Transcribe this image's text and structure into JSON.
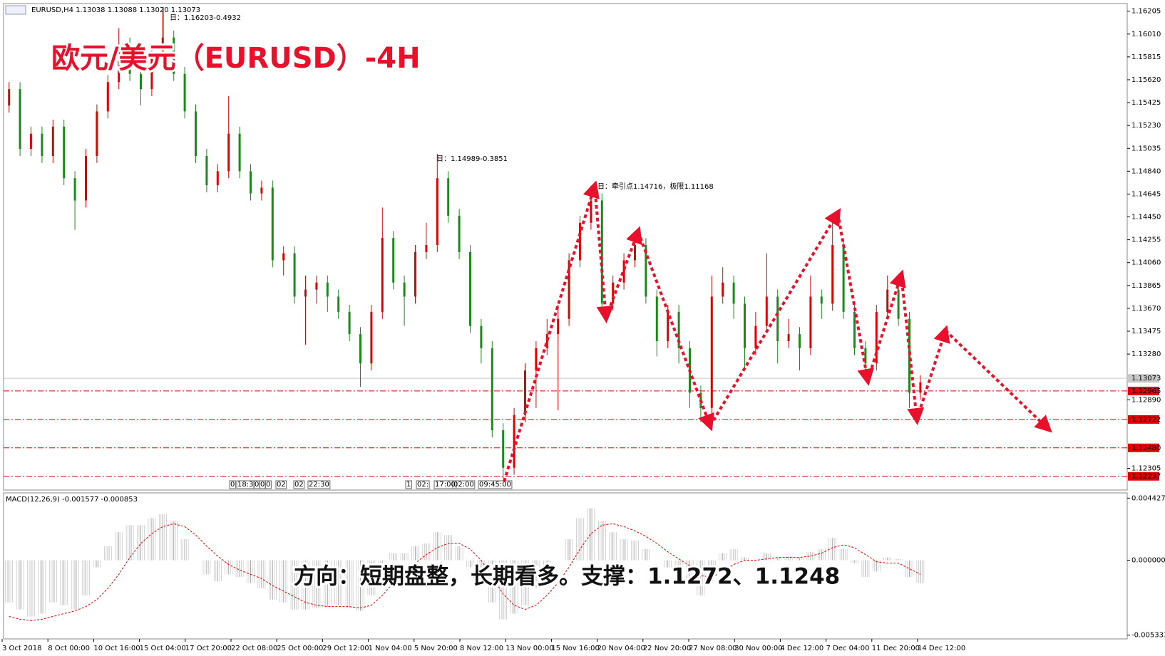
{
  "chart_data": [
    {
      "type": "candlestick",
      "header": "EURUSD,H4  1.13038 1.13088 1.13020 1.13073",
      "title": "欧元/美元（EURUSD）-4H",
      "annotations": [
        "日：1.16203-0.4932",
        "日：1.14989-0.3851",
        "日：牵引点1.14716，极限1.11168"
      ],
      "time_tags": [
        "0",
        "18:3",
        "0",
        "0",
        "0",
        "02",
        "02",
        "22:30",
        "1",
        "02:",
        "17:00",
        "02:00",
        "09:45:00"
      ],
      "up_color": "#e00000",
      "down_color": "#1a8a1a",
      "ylim": [
        1.1212,
        1.1627
      ],
      "yticks": [
        1.16205,
        {
          "value": 1.1601,
          "label": "1.16010"
        },
        1.15815,
        {
          "value": 1.1562,
          "label": "1.15620"
        },
        1.15425,
        {
          "value": 1.1523,
          "label": "1.15230"
        },
        1.15035,
        {
          "value": 1.1484,
          "label": "1.14840"
        },
        1.14645,
        {
          "value": 1.1445,
          "label": "1.14450"
        },
        1.14255,
        {
          "value": 1.1406,
          "label": "1.14060"
        },
        1.13865,
        {
          "value": 1.1367,
          "label": "1.13670"
        },
        1.13475,
        {
          "value": 1.1328,
          "label": "1.13280"
        },
        {
          "value": 1.1289,
          "label": "1.12890"
        },
        1.12305
      ],
      "levels": [
        1.12965,
        1.12722,
        {
          "value": 1.1248,
          "label": "1.12480"
        },
        1.12237
      ],
      "level_color": "#e00000",
      "current_price": 1.13073,
      "xtick_labels": [
        "3 Oct 2018",
        "8 Oct 00:00",
        "10 Oct 16:00",
        "15 Oct 04:00",
        "17 Oct 20:00",
        "22 Oct 08:00",
        "25 Oct 00:00",
        "29 Oct 12:00",
        "1 Nov 04:00",
        "5 Nov 20:00",
        "8 Nov 12:00",
        "13 Nov 00:00",
        "15 Nov 16:00",
        "20 Nov 04:00",
        "22 Nov 20:00",
        "27 Nov 08:00",
        "30 Nov 00:00",
        "4 Dec 12:00",
        "7 Dec 04:00",
        "11 Dec 20:00",
        "14 Dec 12:00"
      ],
      "open": [
        1.154,
        1.1554,
        1.1503,
        1.1516,
        1.1497,
        1.1522,
        1.1478,
        1.1459,
        1.1497,
        1.1535,
        1.156,
        1.1592,
        1.1567,
        1.1554,
        1.1586,
        1.1598,
        1.1567,
        1.1535,
        1.1497,
        1.1472,
        1.1484,
        1.1516,
        1.1484,
        1.1465,
        1.147,
        1.1408,
        1.1414,
        1.1377,
        1.1383,
        1.1389,
        1.1377,
        1.1364,
        1.1345,
        1.132,
        1.1364,
        1.1427,
        1.1389,
        1.1377,
        1.1415,
        1.1421,
        1.1478,
        1.1446,
        1.1415,
        1.1352,
        1.1333,
        1.1263,
        1.1231,
        1.1276,
        1.1314,
        1.1333,
        1.1345,
        1.1358,
        1.1408,
        1.144,
        1.1459,
        1.1371,
        1.1389,
        1.1408,
        1.1421,
        1.1377,
        1.1339,
        1.1364,
        1.1333,
        1.1295,
        1.1282,
        1.1377,
        1.1389,
        1.1371,
        1.1333,
        1.1352,
        1.1377,
        1.1339,
        1.1345,
        1.1333,
        1.1377,
        1.1371,
        1.1421,
        1.1364,
        1.1333,
        1.132,
        1.1364,
        1.1383,
        1.1358,
        1.1295
      ],
      "high": [
        1.156,
        1.156,
        1.1522,
        1.1522,
        1.1528,
        1.1528,
        1.1484,
        1.1503,
        1.1541,
        1.1566,
        1.1606,
        1.1598,
        1.1573,
        1.1592,
        1.16203,
        1.1604,
        1.1573,
        1.1541,
        1.1503,
        1.149,
        1.1548,
        1.1522,
        1.149,
        1.1476,
        1.1476,
        1.142,
        1.142,
        1.1395,
        1.1395,
        1.1395,
        1.1383,
        1.137,
        1.1351,
        1.137,
        1.1453,
        1.1433,
        1.1395,
        1.1421,
        1.144,
        1.14989,
        1.1484,
        1.1452,
        1.1421,
        1.1358,
        1.1339,
        1.1269,
        1.1282,
        1.132,
        1.1339,
        1.1358,
        1.137,
        1.1414,
        1.1446,
        1.14716,
        1.1465,
        1.1395,
        1.1414,
        1.1433,
        1.1427,
        1.1383,
        1.137,
        1.137,
        1.1339,
        1.1301,
        1.1395,
        1.1402,
        1.1395,
        1.1377,
        1.1364,
        1.1414,
        1.1383,
        1.1358,
        1.1351,
        1.1395,
        1.1383,
        1.1446,
        1.1427,
        1.137,
        1.1339,
        1.137,
        1.1395,
        1.1389,
        1.1364,
        1.131
      ],
      "low": [
        1.1534,
        1.1497,
        1.1497,
        1.1491,
        1.1491,
        1.1472,
        1.1434,
        1.1453,
        1.1491,
        1.1529,
        1.1554,
        1.1561,
        1.154,
        1.1548,
        1.158,
        1.1561,
        1.1529,
        1.1491,
        1.1466,
        1.1466,
        1.1478,
        1.1478,
        1.1459,
        1.1459,
        1.1402,
        1.1395,
        1.1371,
        1.1336,
        1.1371,
        1.1364,
        1.1358,
        1.1339,
        1.13,
        1.1314,
        1.1358,
        1.1383,
        1.1352,
        1.1371,
        1.1409,
        1.1415,
        1.144,
        1.1409,
        1.1346,
        1.132,
        1.1257,
        1.1222,
        1.1225,
        1.127,
        1.1282,
        1.1327,
        1.128,
        1.1352,
        1.1402,
        1.1434,
        1.1365,
        1.1365,
        1.1383,
        1.1402,
        1.1371,
        1.1326,
        1.1333,
        1.132,
        1.1282,
        1.127,
        1.1276,
        1.1371,
        1.1358,
        1.1314,
        1.1327,
        1.1346,
        1.132,
        1.1333,
        1.1314,
        1.1327,
        1.1358,
        1.1365,
        1.1358,
        1.1327,
        1.1308,
        1.1314,
        1.1358,
        1.1352,
        1.1282,
        1.1289
      ],
      "close": [
        1.1554,
        1.1503,
        1.1516,
        1.1497,
        1.1522,
        1.1478,
        1.1459,
        1.1497,
        1.1535,
        1.156,
        1.1592,
        1.1567,
        1.1554,
        1.1586,
        1.1598,
        1.1567,
        1.1535,
        1.1497,
        1.1472,
        1.1484,
        1.1516,
        1.1484,
        1.1465,
        1.147,
        1.1408,
        1.1414,
        1.1377,
        1.1383,
        1.1389,
        1.1377,
        1.1364,
        1.1345,
        1.132,
        1.1364,
        1.1427,
        1.1389,
        1.1377,
        1.1415,
        1.1421,
        1.1478,
        1.1446,
        1.1415,
        1.1352,
        1.1333,
        1.1263,
        1.1231,
        1.1276,
        1.1314,
        1.1333,
        1.1345,
        1.1358,
        1.1408,
        1.144,
        1.1459,
        1.1371,
        1.1389,
        1.1408,
        1.1421,
        1.1377,
        1.1339,
        1.1364,
        1.1333,
        1.1295,
        1.1282,
        1.1377,
        1.1389,
        1.1371,
        1.1333,
        1.1352,
        1.1377,
        1.1339,
        1.1345,
        1.1333,
        1.1377,
        1.1371,
        1.1421,
        1.1364,
        1.1333,
        1.132,
        1.1364,
        1.1383,
        1.1358,
        1.1295,
        1.1304
      ]
    },
    {
      "type": "macd",
      "label": "MACD(12,26,9) -0.001577 -0.000853",
      "annotation": "方向：短期盘整，长期看多。支撑：1.1272、1.1248",
      "ylim": [
        -0.0056,
        0.0048
      ],
      "yticks": [
        0.004427,
        {
          "value": 0,
          "label": "0.000000"
        },
        -0.005333
      ],
      "series": [
        {
          "color": "#a8a8a8",
          "values": [
            -0.003,
            -0.0035,
            -0.004,
            -0.0038,
            -0.003,
            -0.0032,
            -0.0035,
            -0.0025,
            -0.0005,
            0.001,
            0.002,
            0.0025,
            0.0025,
            0.003,
            0.0033,
            0.0028,
            0.0015,
            0.0,
            -0.001,
            -0.0015,
            -0.001,
            -0.0012,
            -0.0016,
            -0.002,
            -0.0028,
            -0.003,
            -0.0035,
            -0.0035,
            -0.0034,
            -0.0033,
            -0.0032,
            -0.0034,
            -0.0036,
            -0.0025,
            -0.0005,
            0.0005,
            0.0005,
            0.001,
            0.0012,
            0.002,
            0.0018,
            0.001,
            -0.0005,
            -0.0015,
            -0.003,
            -0.0042,
            -0.0038,
            -0.0032,
            -0.002,
            -0.001,
            0.0,
            0.0015,
            0.003,
            0.0037,
            0.0028,
            0.002,
            0.0015,
            0.0014,
            0.0008,
            0.0,
            -0.0005,
            -0.0006,
            -0.0015,
            -0.0025,
            -0.0008,
            0.0005,
            0.0008,
            0.0002,
            0.0,
            0.0005,
            0.0002,
            0.0003,
            0.0002,
            0.0006,
            0.0008,
            0.0016,
            0.0008,
            -0.0002,
            -0.0012,
            -0.0008,
            0.0002,
            0.0001,
            -0.0012,
            -0.0016
          ]
        },
        {
          "color": "#e00000",
          "values": [
            -0.004,
            -0.0042,
            -0.0043,
            -0.0042,
            -0.004,
            -0.0038,
            -0.0036,
            -0.0033,
            -0.0028,
            -0.002,
            -0.001,
            0.0002,
            0.0012,
            0.0019,
            0.0024,
            0.0026,
            0.0024,
            0.0018,
            0.001,
            0.0003,
            -0.0003,
            -0.0007,
            -0.001,
            -0.0013,
            -0.0018,
            -0.0022,
            -0.0026,
            -0.003,
            -0.0032,
            -0.0033,
            -0.0033,
            -0.0033,
            -0.0034,
            -0.0032,
            -0.0025,
            -0.0016,
            -0.0008,
            -0.0002,
            0.0004,
            0.0009,
            0.0012,
            0.0012,
            0.0008,
            0.0,
            -0.0012,
            -0.0024,
            -0.0032,
            -0.0035,
            -0.0032,
            -0.0025,
            -0.0016,
            -0.0005,
            0.0008,
            0.0019,
            0.0025,
            0.0026,
            0.0024,
            0.0021,
            0.0017,
            0.0012,
            0.0006,
            0.0001,
            -0.0004,
            -0.0011,
            -0.0012,
            -0.0008,
            -0.0003,
            0.0,
            0.0,
            0.0001,
            0.0002,
            0.0002,
            0.0002,
            0.0003,
            0.0005,
            0.0009,
            0.0011,
            0.0009,
            0.0004,
            -0.0001,
            -0.0002,
            -0.0002,
            -0.0006,
            -0.001
          ]
        }
      ]
    }
  ]
}
